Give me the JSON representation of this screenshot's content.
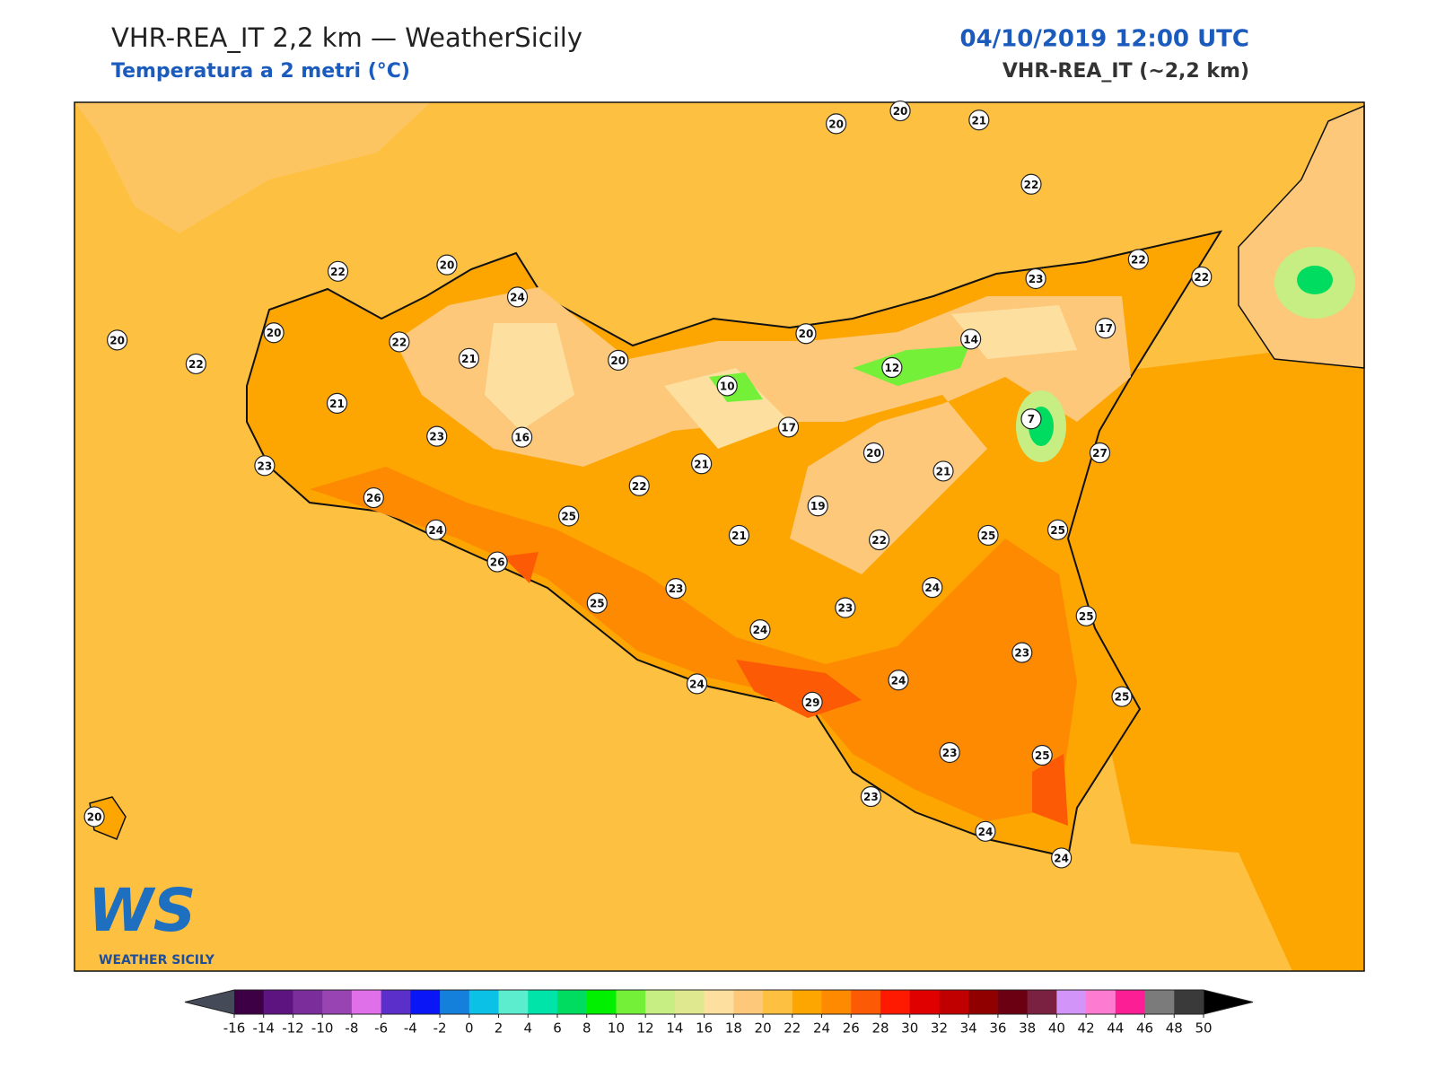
{
  "header": {
    "title": "VHR-REA_IT 2,2 km — WeatherSicily",
    "subtitle": "Temperatura a 2 metri (°C)",
    "date": "04/10/2019 12:00 UTC",
    "model": "VHR-REA_IT (~2,2 km)"
  },
  "logo": {
    "mark": "WS",
    "name": "WEATHER SICILY"
  },
  "stations": [
    20,
    20,
    21,
    22,
    22,
    20,
    24,
    22,
    22,
    23,
    20,
    20,
    22,
    22,
    21,
    20,
    20,
    14,
    17,
    12,
    10,
    21,
    23,
    16,
    17,
    7,
    20,
    27,
    23,
    21,
    21,
    22,
    26,
    19,
    25,
    24,
    21,
    22,
    25,
    25,
    26,
    24,
    23,
    25,
    23,
    25,
    24,
    23,
    24,
    24,
    29,
    25,
    23,
    25,
    23,
    24,
    24,
    20
  ],
  "colorbar": {
    "ticks": [
      -16,
      -14,
      -12,
      -10,
      -8,
      -6,
      -4,
      -2,
      0,
      2,
      4,
      6,
      8,
      10,
      12,
      14,
      16,
      18,
      20,
      22,
      24,
      26,
      28,
      30,
      32,
      34,
      36,
      38,
      40,
      42,
      44,
      46,
      48,
      50
    ],
    "colors": [
      "#3d0045",
      "#5e1480",
      "#7b2d9c",
      "#9845b3",
      "#df70ea",
      "#5b2fc9",
      "#0a16f5",
      "#157fdc",
      "#0bc1e6",
      "#5cedcf",
      "#00e3a9",
      "#00dc60",
      "#00f000",
      "#74f038",
      "#c6ee82",
      "#e0e88f",
      "#fde0a0",
      "#fdc87a",
      "#fdc040",
      "#fda500",
      "#fd8a00",
      "#fd5a05",
      "#fd1a00",
      "#e00000",
      "#c00000",
      "#900000",
      "#6a0012",
      "#7a2040",
      "#d394fa",
      "#fd7bd0",
      "#fb1e94",
      "#7b7b7b",
      "#3a3a3a"
    ],
    "under": "#444a58",
    "over": "#000000"
  }
}
